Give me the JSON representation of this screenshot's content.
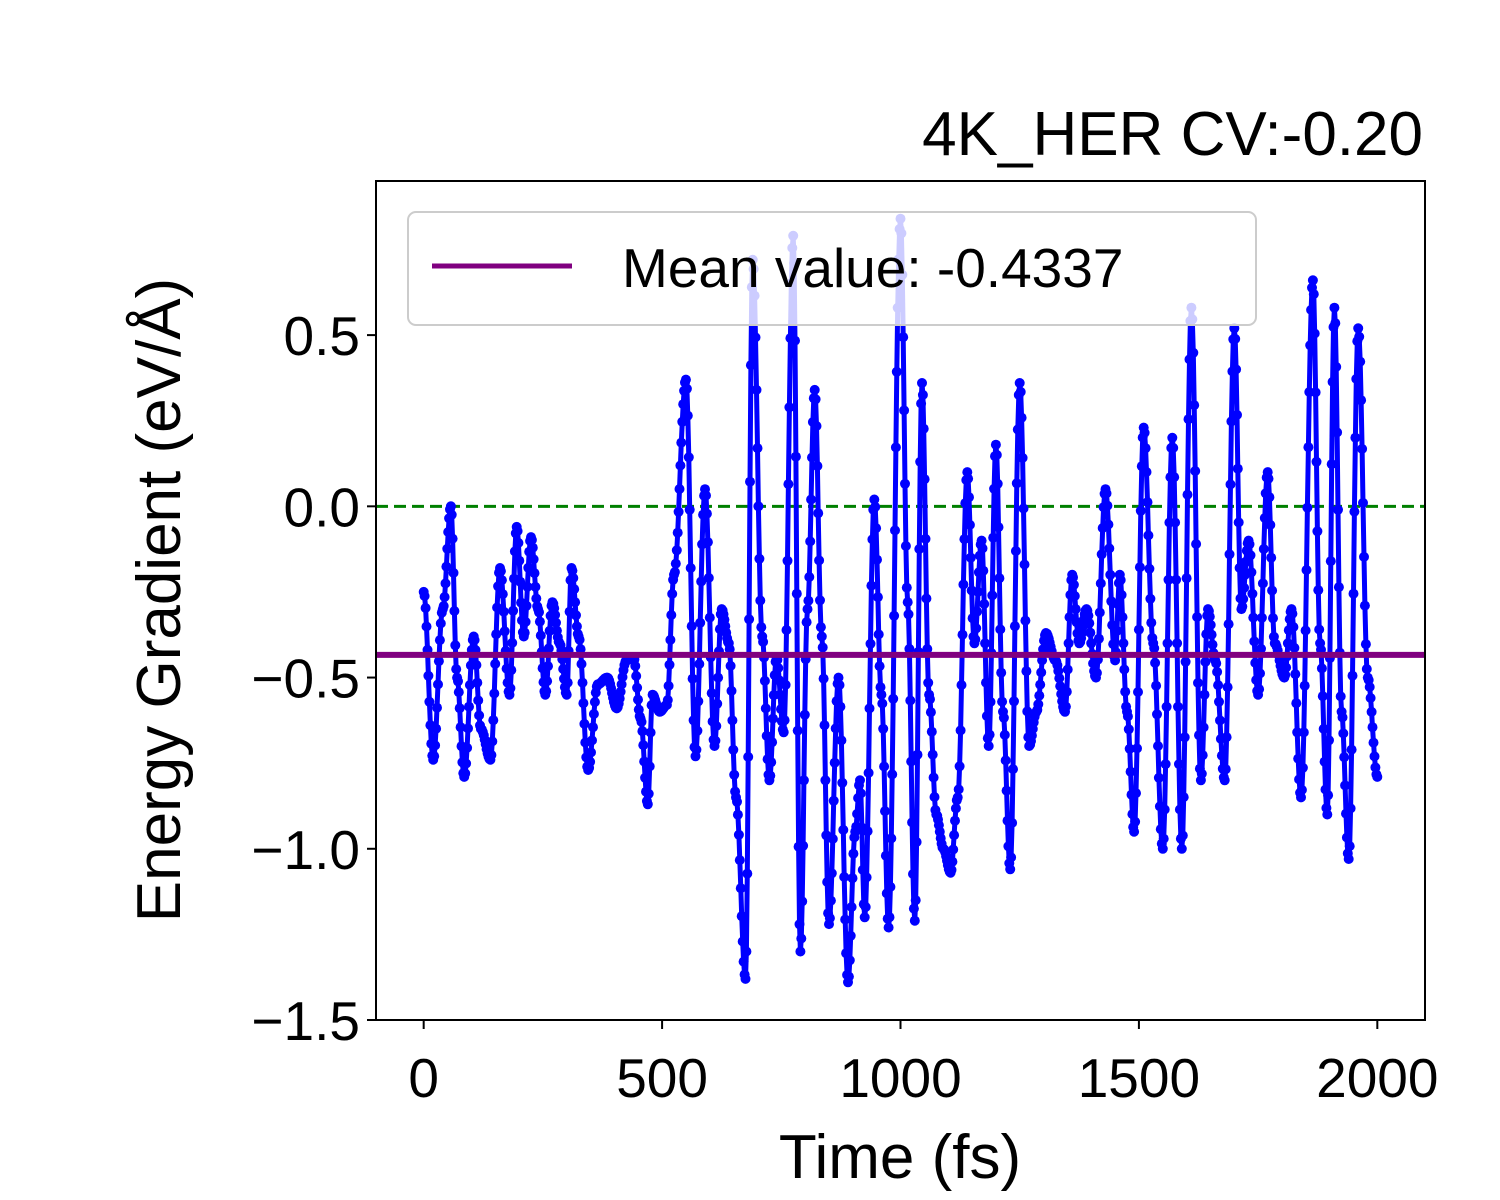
{
  "chart_data": {
    "type": "line",
    "title": "4K_HER CV:-0.20",
    "xlabel": "Time (fs)",
    "ylabel": "Energy Gradient (eV/Å)",
    "xlim": [
      -100,
      2100
    ],
    "ylim": [
      -1.5,
      0.95
    ],
    "xticks": [
      0,
      500,
      1000,
      1500,
      2000
    ],
    "xtick_labels": [
      "0",
      "500",
      "1000",
      "1500",
      "2000"
    ],
    "yticks": [
      -1.5,
      -1.0,
      -0.5,
      0.0,
      0.5
    ],
    "ytick_labels": [
      "−1.5",
      "−1.0",
      "−0.5",
      "0.0",
      "0.5"
    ],
    "grid": false,
    "legend": {
      "location": "upper-left",
      "entries": [
        "Mean value: -0.4337"
      ]
    },
    "colors": {
      "series": "#0000ff",
      "mean": "#800080",
      "zero_line": "#008000",
      "legend_border": "#cccccc"
    },
    "series": [
      {
        "style": "line-with-markers",
        "keypoints": [
          [
            0,
            -0.25
          ],
          [
            20,
            -0.74
          ],
          [
            40,
            -0.3
          ],
          [
            57,
            0.0
          ],
          [
            70,
            -0.5
          ],
          [
            85,
            -0.79
          ],
          [
            105,
            -0.38
          ],
          [
            120,
            -0.65
          ],
          [
            140,
            -0.74
          ],
          [
            160,
            -0.18
          ],
          [
            180,
            -0.55
          ],
          [
            195,
            -0.06
          ],
          [
            210,
            -0.38
          ],
          [
            225,
            -0.09
          ],
          [
            240,
            -0.3
          ],
          [
            255,
            -0.55
          ],
          [
            270,
            -0.28
          ],
          [
            285,
            -0.4
          ],
          [
            300,
            -0.55
          ],
          [
            310,
            -0.18
          ],
          [
            325,
            -0.38
          ],
          [
            345,
            -0.77
          ],
          [
            365,
            -0.52
          ],
          [
            385,
            -0.5
          ],
          [
            405,
            -0.59
          ],
          [
            425,
            -0.45
          ],
          [
            440,
            -0.44
          ],
          [
            455,
            -0.62
          ],
          [
            470,
            -0.87
          ],
          [
            480,
            -0.55
          ],
          [
            495,
            -0.6
          ],
          [
            510,
            -0.58
          ],
          [
            525,
            -0.2
          ],
          [
            550,
            0.37
          ],
          [
            570,
            -0.73
          ],
          [
            590,
            0.05
          ],
          [
            610,
            -0.7
          ],
          [
            625,
            -0.3
          ],
          [
            640,
            -0.4
          ],
          [
            655,
            -0.85
          ],
          [
            675,
            -1.38
          ],
          [
            690,
            0.72
          ],
          [
            710,
            -0.38
          ],
          [
            725,
            -0.8
          ],
          [
            740,
            -0.44
          ],
          [
            755,
            -0.66
          ],
          [
            775,
            0.79
          ],
          [
            790,
            -1.3
          ],
          [
            805,
            -0.3
          ],
          [
            820,
            0.34
          ],
          [
            835,
            -0.38
          ],
          [
            850,
            -1.22
          ],
          [
            870,
            -0.5
          ],
          [
            890,
            -1.39
          ],
          [
            905,
            -0.95
          ],
          [
            915,
            -0.8
          ],
          [
            925,
            -1.2
          ],
          [
            945,
            0.02
          ],
          [
            960,
            -0.55
          ],
          [
            975,
            -1.23
          ],
          [
            1000,
            0.84
          ],
          [
            1015,
            -0.28
          ],
          [
            1030,
            -1.21
          ],
          [
            1045,
            0.36
          ],
          [
            1060,
            -0.55
          ],
          [
            1075,
            -0.9
          ],
          [
            1090,
            -1.0
          ],
          [
            1105,
            -1.07
          ],
          [
            1120,
            -0.85
          ],
          [
            1140,
            0.1
          ],
          [
            1155,
            -0.4
          ],
          [
            1170,
            -0.1
          ],
          [
            1185,
            -0.7
          ],
          [
            1200,
            0.18
          ],
          [
            1215,
            -0.6
          ],
          [
            1230,
            -1.06
          ],
          [
            1250,
            0.36
          ],
          [
            1270,
            -0.7
          ],
          [
            1285,
            -0.6
          ],
          [
            1305,
            -0.37
          ],
          [
            1325,
            -0.45
          ],
          [
            1345,
            -0.6
          ],
          [
            1360,
            -0.2
          ],
          [
            1375,
            -0.4
          ],
          [
            1390,
            -0.3
          ],
          [
            1410,
            -0.5
          ],
          [
            1430,
            0.05
          ],
          [
            1450,
            -0.45
          ],
          [
            1460,
            -0.2
          ],
          [
            1475,
            -0.6
          ],
          [
            1490,
            -0.95
          ],
          [
            1510,
            0.23
          ],
          [
            1530,
            -0.4
          ],
          [
            1550,
            -1.0
          ],
          [
            1570,
            0.2
          ],
          [
            1590,
            -1.0
          ],
          [
            1610,
            0.58
          ],
          [
            1630,
            -0.8
          ],
          [
            1645,
            -0.3
          ],
          [
            1660,
            -0.45
          ],
          [
            1680,
            -0.8
          ],
          [
            1700,
            0.52
          ],
          [
            1715,
            -0.3
          ],
          [
            1730,
            -0.1
          ],
          [
            1750,
            -0.55
          ],
          [
            1770,
            0.1
          ],
          [
            1785,
            -0.4
          ],
          [
            1805,
            -0.5
          ],
          [
            1820,
            -0.3
          ],
          [
            1840,
            -0.85
          ],
          [
            1865,
            0.66
          ],
          [
            1880,
            -0.4
          ],
          [
            1895,
            -0.9
          ],
          [
            1910,
            0.58
          ],
          [
            1925,
            -0.6
          ],
          [
            1940,
            -1.03
          ],
          [
            1960,
            0.52
          ],
          [
            1980,
            -0.5
          ],
          [
            2000,
            -0.79
          ]
        ]
      }
    ],
    "reference_lines": [
      {
        "type": "horizontal",
        "y": -0.4337,
        "style": "solid",
        "label": "Mean value: -0.4337"
      },
      {
        "type": "horizontal",
        "y": 0.0,
        "style": "dashed"
      }
    ]
  }
}
